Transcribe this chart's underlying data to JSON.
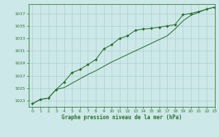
{
  "title": "Graphe pression niveau de la mer (hPa)",
  "xlim": [
    -0.5,
    23
  ],
  "ylim": [
    1022.0,
    1038.5
  ],
  "yticks": [
    1023,
    1025,
    1027,
    1029,
    1031,
    1033,
    1035,
    1037
  ],
  "xticks": [
    0,
    1,
    2,
    3,
    4,
    5,
    6,
    7,
    8,
    9,
    10,
    11,
    12,
    13,
    14,
    15,
    16,
    17,
    18,
    19,
    20,
    21,
    22,
    23
  ],
  "bg_color": "#cce8e8",
  "line_color": "#2d6e2d",
  "grid_color": "#aacccc",
  "series1_x": [
    0,
    1,
    2,
    3,
    4,
    5,
    6,
    7,
    8,
    9,
    10,
    11,
    12,
    13,
    14,
    15,
    16,
    17,
    18,
    19,
    20,
    21,
    22,
    23
  ],
  "series1_y": [
    1022.5,
    1023.2,
    1023.4,
    1024.8,
    1026.0,
    1027.5,
    1028.0,
    1028.8,
    1029.6,
    1031.3,
    1032.0,
    1033.0,
    1033.4,
    1034.3,
    1034.5,
    1034.6,
    1034.8,
    1035.0,
    1035.2,
    1036.8,
    1037.0,
    1037.3,
    1037.7,
    1038.0
  ],
  "series2_x": [
    0,
    1,
    2,
    3,
    4,
    5,
    6,
    7,
    8,
    9,
    10,
    11,
    12,
    13,
    14,
    15,
    16,
    17,
    18,
    19,
    20,
    21,
    22,
    23
  ],
  "series2_y": [
    1022.5,
    1023.2,
    1023.4,
    1024.8,
    1025.1,
    1025.8,
    1026.5,
    1027.2,
    1027.8,
    1028.5,
    1029.2,
    1029.8,
    1030.4,
    1031.0,
    1031.6,
    1032.2,
    1032.8,
    1033.4,
    1034.5,
    1035.8,
    1036.7,
    1037.2,
    1037.7,
    1038.0
  ]
}
